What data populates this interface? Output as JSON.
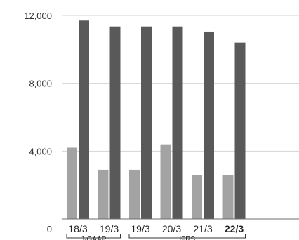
{
  "chart_data": {
    "type": "bar",
    "categories": [
      "18/3",
      "19/3",
      "19/3",
      "20/3",
      "21/3",
      "22/3"
    ],
    "highlight_category_index": 5,
    "series": [
      {
        "values": [
          4200,
          2900,
          2900,
          4400,
          2600,
          2600
        ],
        "color": "#a3a3a3"
      },
      {
        "values": [
          11700,
          11350,
          11350,
          11350,
          11050,
          10400
        ],
        "color": "#595959"
      }
    ],
    "ylim": [
      0,
      12000
    ],
    "y_ticks": [
      {
        "value": 0,
        "label": "0"
      },
      {
        "value": 4000,
        "label": "4,000"
      },
      {
        "value": 8000,
        "label": "8,000"
      },
      {
        "value": 12000,
        "label": "12,000"
      }
    ],
    "gridlines": true,
    "groups": [
      {
        "label": "J-GAAP",
        "from": 0,
        "to": 1
      },
      {
        "label": "IFRS",
        "from": 2,
        "to": 5
      }
    ],
    "title": "",
    "xlabel": "",
    "ylabel": ""
  }
}
